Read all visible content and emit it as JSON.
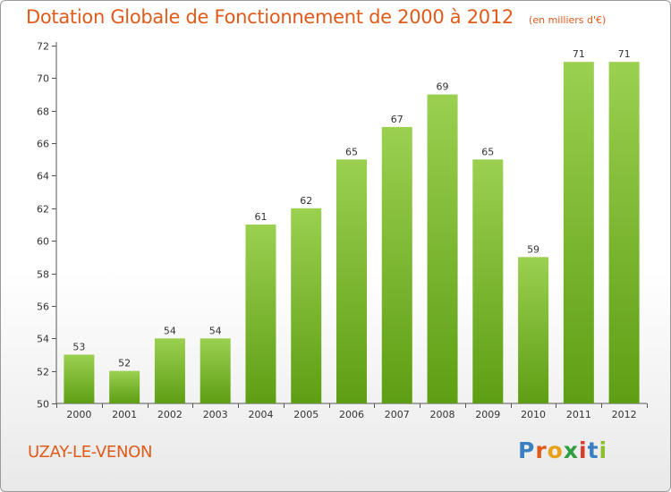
{
  "header": {
    "title": "Dotation Globale de Fonctionnement de 2000 à 2012",
    "unit": "(en milliers d'€)"
  },
  "footer": {
    "commune": "UZAY-LE-VENON",
    "logo": [
      "P",
      "r",
      "o",
      "x",
      "i",
      "t",
      "i"
    ]
  },
  "colors": {
    "title": "#e05a1a",
    "bar_top": "#9bd050",
    "bar_bottom": "#5e9e14",
    "logo_letters": [
      "#3a7fc1",
      "#e05a1a",
      "#e8a21a",
      "#2e9e3e",
      "#d93a2a",
      "#3a7fc1",
      "#8cbf2e"
    ]
  },
  "chart_data": {
    "type": "bar",
    "categories": [
      "2000",
      "2001",
      "2002",
      "2003",
      "2004",
      "2005",
      "2006",
      "2007",
      "2008",
      "2009",
      "2010",
      "2011",
      "2012"
    ],
    "values": [
      53,
      52,
      54,
      54,
      61,
      62,
      65,
      67,
      69,
      65,
      59,
      71,
      71
    ],
    "ylim": [
      50,
      72
    ],
    "yticks": [
      50,
      52,
      54,
      56,
      58,
      60,
      62,
      64,
      66,
      68,
      70,
      72
    ],
    "grid": false,
    "data_labels": true
  }
}
